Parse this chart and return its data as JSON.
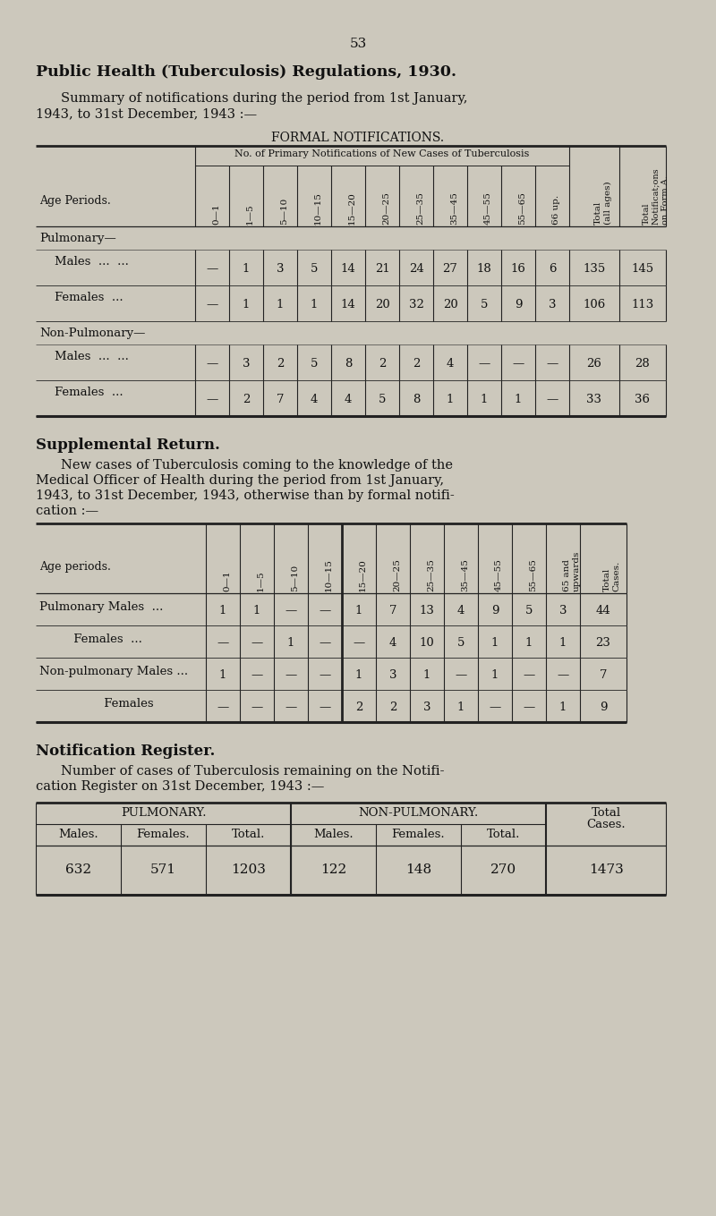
{
  "page_number": "53",
  "bg_color": "#ccc8bc",
  "title_bold": "Public Health (Tuberculosis) Regulations, 1930.",
  "table1_span_header": "No. of Primary Notifications of New Cases of Tuberculosis",
  "table1_age_label": "Age Periods.",
  "table1_age_cols": [
    "0—1",
    "1—5",
    "5—10",
    "10—15",
    "15—20",
    "20—25",
    "25—35",
    "35—45",
    "45—55",
    "55—65",
    "66 up."
  ],
  "table1_total_col": "Total\n(all ages)",
  "table1_form_col": "Total\nNotificat;ons\non Form A.",
  "table1_rows_vals": [
    [
      "—",
      "1",
      "3",
      "5",
      "14",
      "21",
      "24",
      "27",
      "18",
      "16",
      "6",
      "135",
      "145"
    ],
    [
      "—",
      "1",
      "1",
      "1",
      "14",
      "20",
      "32",
      "20",
      "5",
      "9",
      "3",
      "106",
      "113"
    ],
    [
      "—",
      "3",
      "2",
      "5",
      "8",
      "2",
      "2",
      "4",
      "—",
      "—",
      "—",
      "26",
      "28"
    ],
    [
      "—",
      "2",
      "7",
      "4",
      "4",
      "5",
      "8",
      "1",
      "1",
      "1",
      "—",
      "33",
      "36"
    ]
  ],
  "table2_age_label": "Age periods.",
  "table2_age_cols": [
    "0—1",
    "1—5",
    "5—10",
    "10—15",
    "15—20",
    "20—25",
    "25—35",
    "35—45",
    "45—55",
    "55—65",
    "65 and\nupwards"
  ],
  "table2_total_col": "Total\nCases.",
  "table2_rows_vals": [
    [
      "1",
      "1",
      "—",
      "—",
      "1",
      "7",
      "13",
      "4",
      "9",
      "5",
      "3",
      "44"
    ],
    [
      "—",
      "—",
      "1",
      "—",
      "—",
      "4",
      "10",
      "5",
      "1",
      "1",
      "1",
      "23"
    ],
    [
      "1",
      "—",
      "—",
      "—",
      "1",
      "3",
      "1",
      "—",
      "1",
      "—",
      "—",
      "7"
    ],
    [
      "—",
      "—",
      "—",
      "—",
      "2",
      "2",
      "3",
      "1",
      "—",
      "—",
      "1",
      "9"
    ]
  ],
  "table3_sub_headers": [
    "Males.",
    "Females.",
    "Total.",
    "Males.",
    "Females.",
    "Total."
  ],
  "table3_values": [
    "632",
    "571",
    "1203",
    "122",
    "148",
    "270",
    "1473"
  ]
}
